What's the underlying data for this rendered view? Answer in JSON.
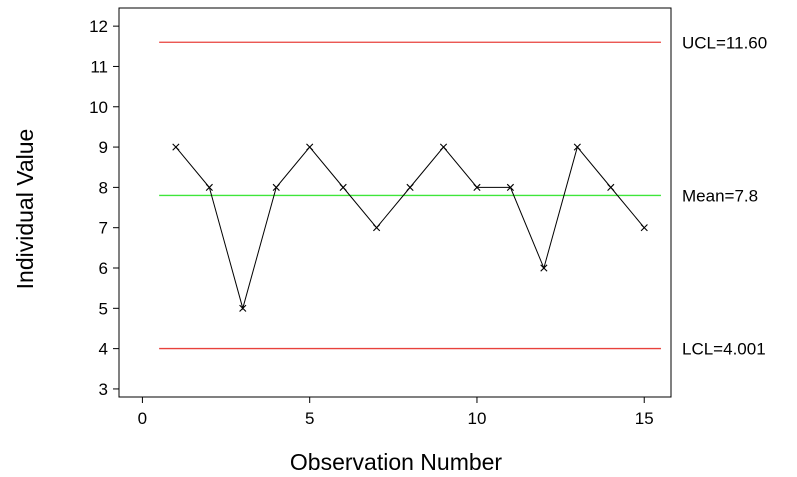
{
  "chart_data": {
    "type": "line",
    "title": "",
    "xlabel": "Observation Number",
    "ylabel": "Individual Value",
    "xlim": [
      -0.7,
      15.8
    ],
    "ylim": [
      2.8,
      12.45
    ],
    "x_ticks": [
      0,
      5,
      10,
      15
    ],
    "y_ticks": [
      3,
      4,
      5,
      6,
      7,
      8,
      9,
      10,
      11,
      12
    ],
    "grid": false,
    "legend": "none",
    "series": [
      {
        "x": [
          1,
          2,
          3,
          4,
          5,
          6,
          7,
          8,
          9,
          10,
          11,
          12,
          13,
          14,
          15
        ],
        "values": [
          9,
          8,
          5,
          8,
          9,
          8,
          7,
          8,
          9,
          8,
          8,
          6,
          9,
          8,
          7
        ],
        "color": "#000000",
        "marker": "x"
      }
    ],
    "reference_lines": [
      {
        "key": "ucl",
        "label": "UCL=11.60",
        "value": 11.6,
        "color": "#e8413c"
      },
      {
        "key": "mean",
        "label": "Mean=7.8",
        "value": 7.8,
        "color": "#3fe63a"
      },
      {
        "key": "lcl",
        "label": "LCL=4.001",
        "value": 4.001,
        "color": "#e8413c"
      }
    ],
    "reference_line_x_range": [
      0.5,
      15.5
    ]
  }
}
